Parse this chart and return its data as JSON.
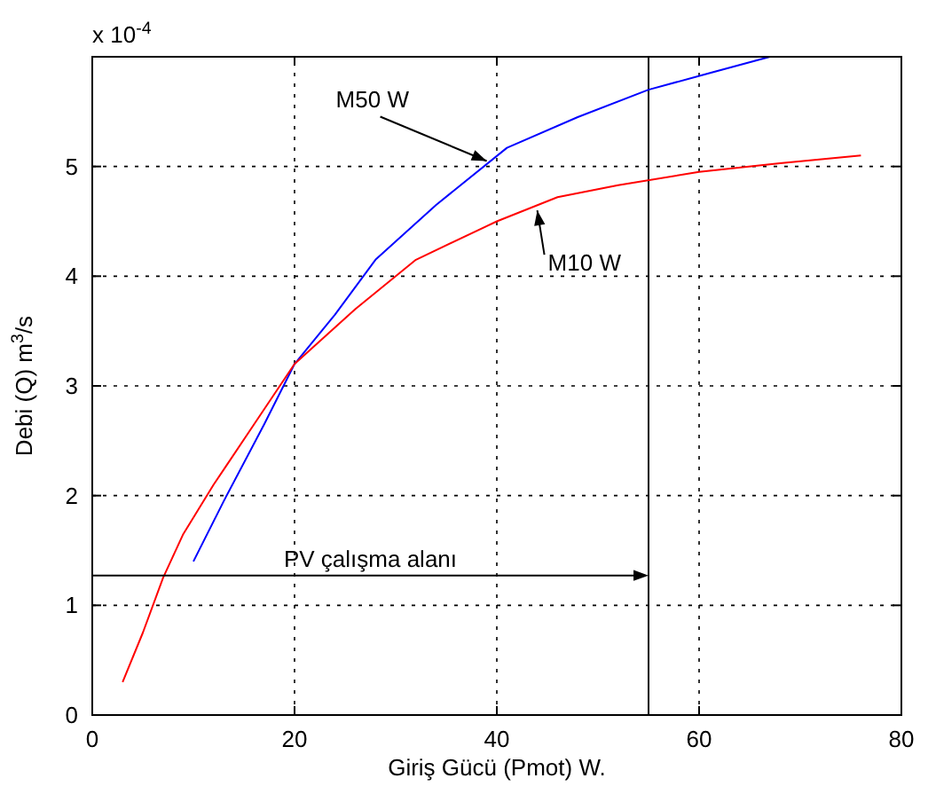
{
  "chart_data": {
    "type": "line",
    "xlabel": "Giriş Gücü (Pmot) W.",
    "ylabel": "Debi (Q) m$^{3}$/s",
    "xlim": [
      0,
      80
    ],
    "xticks": [
      0,
      20,
      40,
      60,
      80
    ],
    "ylim": [
      0,
      6
    ],
    "yticks": [
      0,
      1,
      2,
      3,
      4,
      5
    ],
    "grid": true,
    "line_style": "solid",
    "marker": "none",
    "series": [
      {
        "color": "#0000ff",
        "x": [
          10,
          13,
          17,
          20,
          24,
          28,
          34,
          41,
          48,
          55,
          61,
          67
        ],
        "values": [
          1.4,
          1.95,
          2.65,
          3.2,
          3.65,
          4.15,
          4.65,
          5.17,
          5.45,
          5.7,
          5.85,
          6.0
        ]
      },
      {
        "color": "#ff0000",
        "x": [
          3,
          5,
          7,
          9,
          12,
          16,
          20,
          26,
          32,
          40,
          46,
          52,
          60,
          68,
          76
        ],
        "values": [
          0.3,
          0.75,
          1.25,
          1.65,
          2.1,
          2.65,
          3.2,
          3.7,
          4.15,
          4.5,
          4.72,
          4.83,
          4.95,
          5.03,
          5.1
        ]
      }
    ],
    "ref_lines": [
      {
        "axis": "x",
        "value": 55,
        "color": "#000000"
      }
    ],
    "annotations": [
      "x 10$^{-4}$",
      {
        "text": "M50 W",
        "x": 39,
        "y": 5.05
      },
      {
        "text": "M10 W",
        "x": 44,
        "y": 4.6
      },
      "PV çalışma alanı"
    ]
  }
}
